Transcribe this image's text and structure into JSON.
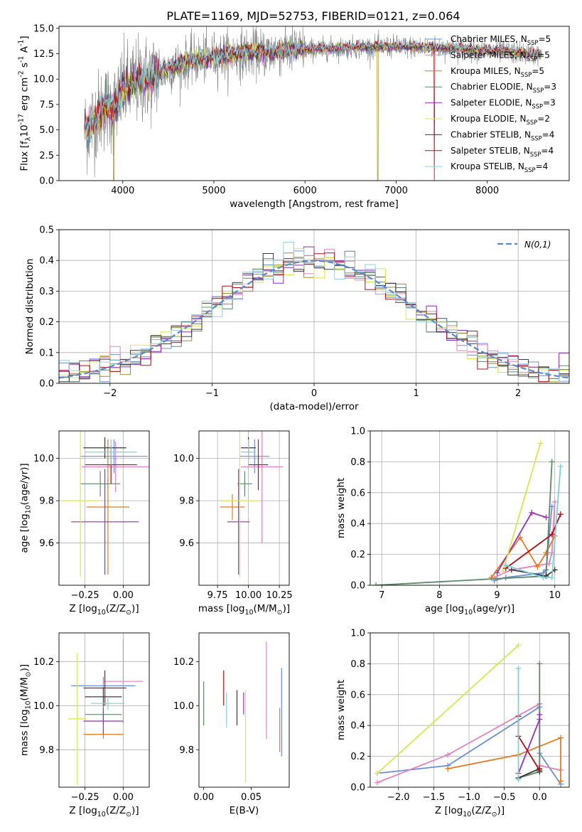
{
  "title": "PLATE=1169, MJD=52753, FIBERID=0121, z=0.064",
  "colors": {
    "data": "#808080",
    "models": [
      "#6a8fd8",
      "#e382bf",
      "#9f8f1f",
      "#5b8a68",
      "#8b2fb0",
      "#d8e84a",
      "#3a3a3a",
      "#b01016",
      "#93cfe0"
    ],
    "fit_palette": [
      "#6a8fd8",
      "#e382bf",
      "#e57a20",
      "#5b8a68",
      "#9c2fb8",
      "#d8e84a",
      "#3a3a3a",
      "#b01016",
      "#7ed0d8"
    ],
    "normal": "#5b87d8"
  },
  "chart_data": [
    {
      "id": "spectrum",
      "type": "line",
      "xlabel": "wavelength [Angstrom, rest frame]",
      "ylabel": "Flux [f$_\\lambda$10$^{-17}$ erg cm$^{-2}$ s$^{-1}$ A$^{-1}$]",
      "xlim": [
        3300,
        8900
      ],
      "ylim": [
        0,
        15.2
      ],
      "xticks": [
        4000,
        5000,
        6000,
        7000,
        8000
      ],
      "xtick_labels": [
        "4000",
        "5000",
        "6000",
        "7000",
        "8000"
      ],
      "yticks": [
        0,
        2.5,
        5,
        7.5,
        10,
        12.5,
        15
      ],
      "ytick_labels": [
        "0.0",
        "2.5",
        "5.0",
        "7.5",
        "10.0",
        "12.5",
        "15.0"
      ],
      "legend_position": "right",
      "continuum": {
        "x": [
          3600,
          3700,
          3800,
          3900,
          4000,
          4100,
          4200,
          4300,
          4500,
          4700,
          5000,
          5300,
          5600,
          6000,
          6500,
          7000,
          7500,
          8000,
          8300,
          8600
        ],
        "y": [
          5.0,
          6.2,
          7.3,
          7.0,
          9.0,
          9.5,
          9.9,
          10.1,
          11.0,
          11.7,
          12.2,
          12.5,
          12.7,
          12.9,
          13.1,
          13.2,
          13.1,
          12.8,
          12.6,
          12.4
        ]
      },
      "series": [
        {
          "name": "Chabrier MILES, N$_{SSP}$=5"
        },
        {
          "name": "Salpeter MILES, N$_{SSP}$=5"
        },
        {
          "name": "Kroupa MILES, N$_{SSP}$=5"
        },
        {
          "name": "Chabrier ELODIE, N$_{SSP}$=3"
        },
        {
          "name": "Salpeter ELODIE, N$_{SSP}$=3"
        },
        {
          "name": "Kroupa ELODIE, N$_{SSP}$=2"
        },
        {
          "name": "Chabrier STELIB, N$_{SSP}$=4"
        },
        {
          "name": "Salpeter STELIB, N$_{SSP}$=4"
        },
        {
          "name": "Kroupa STELIB, N$_{SSP}$=4"
        }
      ],
      "dips": [
        {
          "x": 3900,
          "series": 2
        },
        {
          "x": 6800,
          "series": 2
        },
        {
          "x": 7420,
          "series": 7
        }
      ]
    },
    {
      "id": "residuals",
      "type": "histogram",
      "xlabel": "(data-model)/error",
      "ylabel": "Normed distribution",
      "xlim": [
        -2.5,
        2.5
      ],
      "ylim": [
        0,
        0.5
      ],
      "xticks": [
        -2,
        -1,
        0,
        1,
        2
      ],
      "xtick_labels": [
        "−2",
        "−1",
        "0",
        "1",
        "2"
      ],
      "yticks": [
        0,
        0.1,
        0.2,
        0.3,
        0.4,
        0.5
      ],
      "ytick_labels": [
        "0.0",
        "0.1",
        "0.2",
        "0.3",
        "0.4",
        "0.5"
      ],
      "bin_width": 0.1,
      "legend_position": "top-right",
      "normal_label": "$\\mathcal{N}(0,1)$",
      "grid": true
    },
    {
      "id": "age-vs-Z",
      "type": "errorbar",
      "xlabel": "Z [log$_{10}$(Z/Z$_\\odot$)]",
      "ylabel": "age  [log$_{10}$(age/yr)]",
      "xlim": [
        -0.42,
        0.17
      ],
      "ylim": [
        9.4,
        10.13
      ],
      "xticks": [
        -0.25,
        0.0
      ],
      "xtick_labels": [
        "−0.25",
        "0.00"
      ],
      "yticks": [
        9.6,
        9.8,
        10.0
      ],
      "ytick_labels": [
        "9.6",
        "9.8",
        "10.0"
      ],
      "grid": true,
      "points": [
        {
          "x": -0.06,
          "y": 10.01,
          "xerr": 0.22,
          "yerr": 0.08,
          "color": 0
        },
        {
          "x": -0.05,
          "y": 9.96,
          "xerr": 0.22,
          "yerr": 0.12,
          "color": 1
        },
        {
          "x": -0.1,
          "y": 9.77,
          "xerr": 0.14,
          "yerr": 0.32,
          "color": 2
        },
        {
          "x": -0.15,
          "y": 9.88,
          "xerr": 0.13,
          "yerr": 0.06,
          "color": 3
        },
        {
          "x": -0.12,
          "y": 9.7,
          "xerr": 0.22,
          "yerr": 0.25,
          "color": 4
        },
        {
          "x": -0.28,
          "y": 9.8,
          "xerr": 0.12,
          "yerr": 0.36,
          "color": 5
        },
        {
          "x": -0.12,
          "y": 10.05,
          "xerr": 0.14,
          "yerr": 0.05,
          "color": 6
        },
        {
          "x": -0.08,
          "y": 9.97,
          "xerr": 0.17,
          "yerr": 0.09,
          "color": 7
        },
        {
          "x": -0.08,
          "y": 10.03,
          "xerr": 0.17,
          "yerr": 0.06,
          "color": 8
        }
      ]
    },
    {
      "id": "age-vs-mass",
      "type": "errorbar",
      "xlabel": "mass [log$_{10}$(M/M$_\\odot$)]",
      "ylabel": "",
      "xlim": [
        9.6,
        10.33
      ],
      "ylim": [
        9.4,
        10.13
      ],
      "xticks": [
        9.75,
        10.0,
        10.25
      ],
      "xtick_labels": [
        "9.75",
        "10.00",
        "10.25"
      ],
      "yticks": [
        9.6,
        9.8,
        10.0
      ],
      "ytick_labels": [
        "9.6",
        "9.8",
        "10.0"
      ],
      "grid": true,
      "points": [
        {
          "x": 10.05,
          "y": 10.01,
          "xerr": 0.12,
          "yerr": 0.08,
          "color": 0
        },
        {
          "x": 10.11,
          "y": 9.96,
          "xerr": 0.17,
          "yerr": 0.36,
          "color": 1
        },
        {
          "x": 9.87,
          "y": 9.77,
          "xerr": 0.1,
          "yerr": 0.06,
          "color": 2
        },
        {
          "x": 9.97,
          "y": 9.88,
          "xerr": 0.06,
          "yerr": 0.06,
          "color": 3
        },
        {
          "x": 9.92,
          "y": 9.7,
          "xerr": 0.09,
          "yerr": 0.25,
          "color": 4
        },
        {
          "x": 9.93,
          "y": 9.8,
          "xerr": 0.15,
          "yerr": 0.36,
          "color": 5
        },
        {
          "x": 10.0,
          "y": 10.05,
          "xerr": 0.06,
          "yerr": 0.05,
          "color": 6
        },
        {
          "x": 10.08,
          "y": 9.97,
          "xerr": 0.08,
          "yerr": 0.12,
          "color": 7
        },
        {
          "x": 10.0,
          "y": 10.03,
          "xerr": 0.06,
          "yerr": 0.06,
          "color": 8
        }
      ]
    },
    {
      "id": "massweight-vs-age",
      "type": "line",
      "xlabel": "age  [log$_{10}$(age/yr)]",
      "ylabel": "mass weight",
      "xlim": [
        6.8,
        10.25
      ],
      "ylim": [
        0,
        1.0
      ],
      "xticks": [
        7,
        8,
        9,
        10
      ],
      "xtick_labels": [
        "7",
        "8",
        "9",
        "10"
      ],
      "yticks": [
        0,
        0.2,
        0.4,
        0.6,
        0.8,
        1.0
      ],
      "ytick_labels": [
        "0.0",
        "0.2",
        "0.4",
        "0.6",
        "0.8",
        "1.0"
      ],
      "grid": true,
      "series": [
        {
          "color": 0,
          "x": [
            8.95,
            9.15,
            9.8,
            9.85,
            9.95
          ],
          "y": [
            0.03,
            0.05,
            0.08,
            0.1,
            0.51
          ]
        },
        {
          "color": 1,
          "x": [
            8.95,
            9.25,
            9.9,
            9.95,
            10.0
          ],
          "y": [
            0.05,
            0.1,
            0.14,
            0.21,
            0.54
          ]
        },
        {
          "color": 2,
          "x": [
            8.9,
            9.4,
            9.7,
            9.85,
            10.0
          ],
          "y": [
            0.05,
            0.31,
            0.12,
            0.21,
            0.32
          ]
        },
        {
          "color": 3,
          "x": [
            6.9,
            9.85,
            9.95
          ],
          "y": [
            0.0,
            0.06,
            0.8
          ]
        },
        {
          "color": 4,
          "x": [
            9.0,
            9.6,
            9.85
          ],
          "y": [
            0.08,
            0.47,
            0.44
          ]
        },
        {
          "color": 5,
          "x": [
            9.1,
            9.75
          ],
          "y": [
            0.09,
            0.92
          ]
        },
        {
          "color": 6,
          "x": [
            9.25,
            9.85,
            10.0
          ],
          "y": [
            0.1,
            0.06,
            0.1
          ]
        },
        {
          "color": 7,
          "x": [
            9.15,
            9.95,
            10.1
          ],
          "y": [
            0.11,
            0.33,
            0.46
          ]
        },
        {
          "color": 8,
          "x": [
            9.15,
            9.8,
            9.95,
            10.1
          ],
          "y": [
            0.13,
            0.05,
            0.05,
            0.77
          ]
        }
      ]
    },
    {
      "id": "mass-vs-Z",
      "type": "errorbar",
      "xlabel": "Z [log$_{10}$(Z/Z$_\\odot$)]",
      "ylabel": "mass [log$_{10}$(M/M$_\\odot$)]",
      "xlim": [
        -0.42,
        0.17
      ],
      "ylim": [
        9.63,
        10.33
      ],
      "xticks": [
        -0.25,
        0.0
      ],
      "xtick_labels": [
        "−0.25",
        "0.00"
      ],
      "yticks": [
        9.8,
        10.0,
        10.2
      ],
      "ytick_labels": [
        "9.8",
        "10.0",
        "10.2"
      ],
      "grid": true,
      "points": [
        {
          "x": -0.13,
          "y": 10.09,
          "xerr": 0.21,
          "yerr": 0.04,
          "color": 0
        },
        {
          "x": 0.0,
          "y": 10.11,
          "xerr": 0.13,
          "yerr": 0.19,
          "color": 1
        },
        {
          "x": -0.13,
          "y": 9.87,
          "xerr": 0.13,
          "yerr": 0.02,
          "color": 2
        },
        {
          "x": -0.13,
          "y": 9.96,
          "xerr": 0.12,
          "yerr": 0.05,
          "color": 3
        },
        {
          "x": -0.13,
          "y": 9.93,
          "xerr": 0.13,
          "yerr": 0.06,
          "color": 4
        },
        {
          "x": -0.3,
          "y": 9.94,
          "xerr": 0.06,
          "yerr": 0.3,
          "color": 5
        },
        {
          "x": -0.13,
          "y": 10.04,
          "xerr": 0.12,
          "yerr": 0.04,
          "color": 6
        },
        {
          "x": -0.12,
          "y": 10.08,
          "xerr": 0.14,
          "yerr": 0.08,
          "color": 7
        },
        {
          "x": -0.1,
          "y": 10.01,
          "xerr": 0.11,
          "yerr": 0.03,
          "color": 8
        }
      ]
    },
    {
      "id": "mass-vs-ebv",
      "type": "errorbar",
      "xlabel": "E(B-V)",
      "ylabel": "",
      "xlim": [
        -0.005,
        0.09
      ],
      "ylim": [
        9.63,
        10.33
      ],
      "xticks": [
        0.0,
        0.05
      ],
      "xtick_labels": [
        "0.00",
        "0.05"
      ],
      "yticks": [
        9.8,
        10.0,
        10.2
      ],
      "ytick_labels": [
        "9.8",
        "10.0",
        "10.2"
      ],
      "grid": false,
      "points": [
        {
          "x": 0.082,
          "y": 9.97,
          "xerr": 0,
          "yerr": 0.2,
          "color": 0
        },
        {
          "x": 0.066,
          "y": 10.07,
          "xerr": 0,
          "yerr": 0.22,
          "color": 1
        },
        {
          "x": 0.08,
          "y": 9.89,
          "xerr": 0,
          "yerr": 0.1,
          "color": 2
        },
        {
          "x": 0.0,
          "y": 10.01,
          "xerr": 0,
          "yerr": 0.1,
          "color": 3
        },
        {
          "x": 0.042,
          "y": 10.01,
          "xerr": 0,
          "yerr": 0.05,
          "color": 4
        },
        {
          "x": 0.044,
          "y": 9.86,
          "xerr": 0,
          "yerr": 0.21,
          "color": 5
        },
        {
          "x": 0.035,
          "y": 9.99,
          "xerr": 0,
          "yerr": 0.08,
          "color": 6
        },
        {
          "x": 0.021,
          "y": 10.08,
          "xerr": 0,
          "yerr": 0.08,
          "color": 7
        },
        {
          "x": 0.024,
          "y": 9.98,
          "xerr": 0,
          "yerr": 0.08,
          "color": 8
        }
      ]
    },
    {
      "id": "massweight-vs-Z",
      "type": "line",
      "xlabel": "Z [log$_{10}$(Z/Z$_\\odot$)]",
      "ylabel": "mass weight",
      "xlim": [
        -2.4,
        0.42
      ],
      "ylim": [
        0,
        1.0
      ],
      "xticks": [
        -2.0,
        -1.5,
        -1.0,
        -0.5,
        0.0
      ],
      "xtick_labels": [
        "−2.0",
        "−1.5",
        "−1.0",
        "−0.5",
        "0.0"
      ],
      "yticks": [
        0,
        0.2,
        0.4,
        0.6,
        0.8,
        1.0
      ],
      "ytick_labels": [
        "0.0",
        "0.2",
        "0.4",
        "0.6",
        "0.8",
        "1.0"
      ],
      "grid": true,
      "series": [
        {
          "color": 0,
          "x": [
            -2.3,
            -1.3,
            0.0,
            0.0,
            0.3
          ],
          "y": [
            0.09,
            0.14,
            0.52,
            0.22,
            0.02
          ]
        },
        {
          "color": 1,
          "x": [
            -2.3,
            -1.3,
            0.0,
            0.0,
            0.3
          ],
          "y": [
            0.03,
            0.21,
            0.54,
            0.14,
            0.11
          ]
        },
        {
          "color": 2,
          "x": [
            -1.3,
            -0.3,
            0.3,
            0.3
          ],
          "y": [
            0.12,
            0.21,
            0.32,
            0.04
          ]
        },
        {
          "color": 3,
          "x": [
            -0.3,
            0.0,
            0.0
          ],
          "y": [
            0.06,
            0.1,
            0.8
          ]
        },
        {
          "color": 4,
          "x": [
            -0.3,
            0.0,
            0.0
          ],
          "y": [
            0.09,
            0.44,
            0.47
          ]
        },
        {
          "color": 5,
          "x": [
            -2.3,
            -0.3
          ],
          "y": [
            0.09,
            0.92
          ]
        },
        {
          "color": 6,
          "x": [
            -0.3,
            0.0,
            0.0
          ],
          "y": [
            0.06,
            0.12,
            0.1
          ]
        },
        {
          "color": 7,
          "x": [
            -0.3,
            -0.3,
            0.0
          ],
          "y": [
            0.46,
            0.33,
            0.11
          ]
        },
        {
          "color": 8,
          "x": [
            -0.3,
            -0.3
          ],
          "y": [
            0.77,
            0.05
          ]
        }
      ]
    }
  ]
}
